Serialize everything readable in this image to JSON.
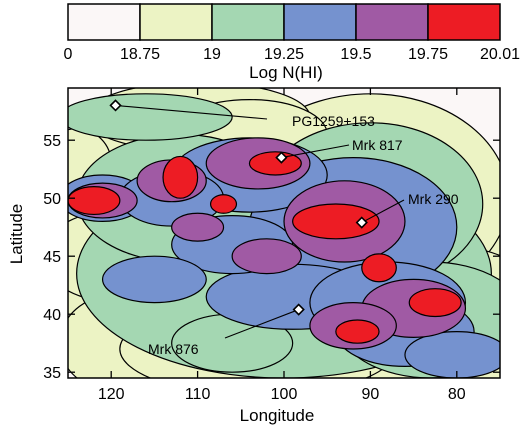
{
  "chart_data": {
    "type": "heatmap",
    "xlabel": "Longitude",
    "ylabel": "Latitude",
    "xlim": [
      125,
      75
    ],
    "ylim": [
      34.5,
      59.5
    ],
    "x_ticks": [
      120,
      110,
      100,
      90,
      80
    ],
    "y_ticks": [
      35,
      40,
      45,
      50,
      55
    ],
    "colorbar": {
      "label": "Log N(HI)",
      "tick_labels": [
        "0",
        "18.75",
        "19",
        "19.25",
        "19.5",
        "19.75",
        "20.01"
      ],
      "levels": [
        0,
        18.75,
        19,
        19.25,
        19.5,
        19.75,
        20.01
      ],
      "colors": [
        "#fbf7f7",
        "#ecf3c4",
        "#a4d7b2",
        "#7592cf",
        "#a05aa4",
        "#ed1c24"
      ]
    },
    "sources": [
      {
        "name": "PG1259+153",
        "lon": 119.5,
        "lat": 58.0
      },
      {
        "name": "Mrk 817",
        "lon": 100.3,
        "lat": 53.5
      },
      {
        "name": "Mrk 290",
        "lon": 91.0,
        "lat": 47.9
      },
      {
        "name": "Mrk 876",
        "lon": 98.3,
        "lat": 40.4
      }
    ],
    "regions": [
      {
        "level": 18.75,
        "blobs": [
          [
            102,
            44.0,
            28,
            11.0
          ],
          [
            90,
            50.0,
            16,
            9.0
          ],
          [
            113,
            50.5,
            14,
            7.0
          ],
          [
            82,
            39.0,
            14,
            7.0
          ],
          [
            119,
            45.0,
            9,
            4.0
          ],
          [
            118,
            37.5,
            8,
            4.5
          ],
          [
            103,
            37.0,
            16,
            4.0
          ],
          [
            110,
            57.0,
            13,
            3.0
          ],
          [
            104,
            55.5,
            9,
            3.0
          ],
          [
            78,
            35.5,
            5,
            2.0
          ],
          [
            124,
            53.0,
            4,
            3.0
          ]
        ]
      },
      {
        "level": 19.0,
        "blobs": [
          [
            100,
            43.5,
            24,
            9.0
          ],
          [
            90,
            49.5,
            13,
            7.0
          ],
          [
            112,
            50.0,
            12,
            5.5
          ],
          [
            83,
            39.5,
            11,
            5.0
          ],
          [
            116,
            57.0,
            10,
            2.0
          ],
          [
            106,
            37.5,
            7,
            2.5
          ]
        ]
      },
      {
        "level": 19.25,
        "blobs": [
          [
            92,
            47.5,
            12,
            6.0
          ],
          [
            104,
            52.0,
            9,
            3.2
          ],
          [
            121,
            50.0,
            5,
            2.0
          ],
          [
            113,
            50.0,
            6,
            2.4
          ],
          [
            99,
            41.5,
            10,
            2.8
          ],
          [
            88,
            41.0,
            9,
            3.5
          ],
          [
            86,
            38.5,
            8,
            3.0
          ],
          [
            106,
            46.0,
            7,
            2.5
          ],
          [
            115,
            43.0,
            6,
            2.0
          ],
          [
            80,
            36.5,
            6,
            2.0
          ]
        ]
      },
      {
        "level": 19.5,
        "blobs": [
          [
            103,
            53.0,
            6,
            2.2
          ],
          [
            113,
            51.5,
            4,
            1.8
          ],
          [
            93,
            48.0,
            7,
            3.5
          ],
          [
            121,
            49.8,
            4,
            1.5
          ],
          [
            85,
            40.5,
            6,
            2.5
          ],
          [
            92,
            39.0,
            5,
            2.0
          ],
          [
            110,
            47.5,
            3,
            1.2
          ],
          [
            102,
            45.0,
            4,
            1.5
          ]
        ]
      },
      {
        "level": 19.75,
        "blobs": [
          [
            122,
            49.8,
            3,
            1.2
          ],
          [
            112,
            51.8,
            2,
            1.8
          ],
          [
            101,
            53.0,
            3,
            1.0
          ],
          [
            94,
            48.0,
            5,
            1.5
          ],
          [
            82.5,
            41.0,
            3,
            1.2
          ],
          [
            91.5,
            38.5,
            2.5,
            1.0
          ],
          [
            107,
            49.5,
            1.5,
            0.8
          ],
          [
            89,
            44.0,
            2,
            1.2
          ]
        ]
      }
    ]
  }
}
